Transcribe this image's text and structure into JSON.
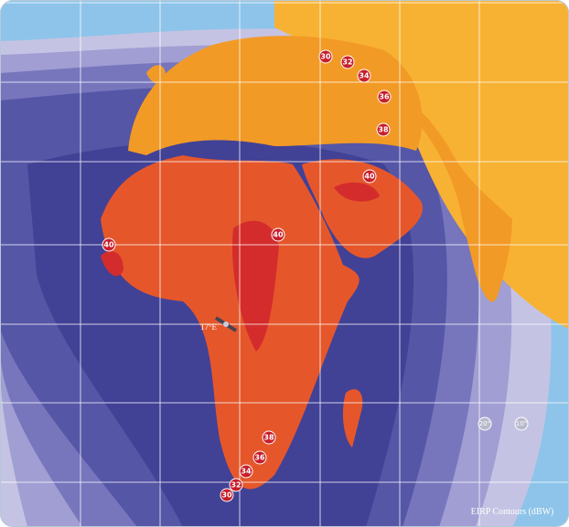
{
  "map": {
    "legend_title": "EIRP Contours (dBW)",
    "satellite": "17°E",
    "contour_labels": [
      30,
      32,
      34,
      36,
      38,
      40,
      40,
      40,
      38,
      36,
      34,
      32,
      30
    ],
    "longitude_labels": [
      "20°",
      "10°"
    ]
  }
}
